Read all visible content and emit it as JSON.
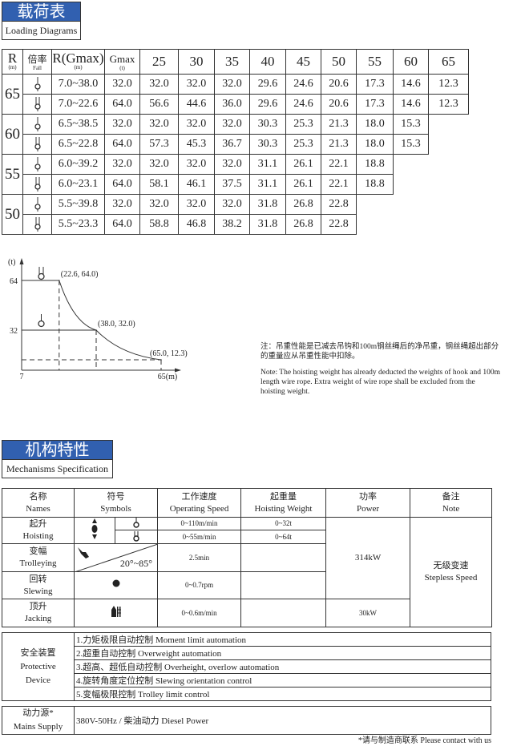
{
  "loading": {
    "title_cn": "载荷表",
    "title_en": "Loading Diagrams",
    "headers": {
      "r": "R",
      "r_unit": "(m)",
      "fall_cn": "倍率",
      "fall_en": "Fall",
      "rgmax": "R(Gmax)",
      "rgmax_unit": "(m)",
      "gmax": "Gmax",
      "gmax_unit": "(t)"
    },
    "radii": [
      "25",
      "30",
      "35",
      "40",
      "45",
      "50",
      "55",
      "60",
      "65"
    ],
    "groups": [
      {
        "r": "65",
        "rows": [
          {
            "fall": "single-hook",
            "range": "7.0~38.0",
            "gmax": "32.0",
            "values": [
              "32.0",
              "32.0",
              "32.0",
              "29.6",
              "24.6",
              "20.6",
              "17.3",
              "14.6",
              "12.3"
            ]
          },
          {
            "fall": "double-hook",
            "range": "7.0~22.6",
            "gmax": "64.0",
            "values": [
              "56.6",
              "44.6",
              "36.0",
              "29.6",
              "24.6",
              "20.6",
              "17.3",
              "14.6",
              "12.3"
            ]
          }
        ]
      },
      {
        "r": "60",
        "rows": [
          {
            "fall": "single-hook",
            "range": "6.5~38.5",
            "gmax": "32.0",
            "values": [
              "32.0",
              "32.0",
              "32.0",
              "30.3",
              "25.3",
              "21.3",
              "18.0",
              "15.3"
            ]
          },
          {
            "fall": "double-hook",
            "range": "6.5~22.8",
            "gmax": "64.0",
            "values": [
              "57.3",
              "45.3",
              "36.7",
              "30.3",
              "25.3",
              "21.3",
              "18.0",
              "15.3"
            ]
          }
        ]
      },
      {
        "r": "55",
        "rows": [
          {
            "fall": "single-hook",
            "range": "6.0~39.2",
            "gmax": "32.0",
            "values": [
              "32.0",
              "32.0",
              "32.0",
              "31.1",
              "26.1",
              "22.1",
              "18.8"
            ]
          },
          {
            "fall": "double-hook",
            "range": "6.0~23.1",
            "gmax": "64.0",
            "values": [
              "58.1",
              "46.1",
              "37.5",
              "31.1",
              "26.1",
              "22.1",
              "18.8"
            ]
          }
        ]
      },
      {
        "r": "50",
        "rows": [
          {
            "fall": "single-hook",
            "range": "5.5~39.8",
            "gmax": "32.0",
            "values": [
              "32.0",
              "32.0",
              "32.0",
              "31.8",
              "26.8",
              "22.8"
            ]
          },
          {
            "fall": "double-hook",
            "range": "5.5~23.3",
            "gmax": "64.0",
            "values": [
              "58.8",
              "46.8",
              "38.2",
              "31.8",
              "26.8",
              "22.8"
            ]
          }
        ]
      }
    ]
  },
  "chart_data": {
    "type": "line",
    "ylabel": "(t)",
    "xlabel": "(m)",
    "x_ticks": [
      "7",
      "65(m)"
    ],
    "y_ticks": [
      "64",
      "32"
    ],
    "points": [
      {
        "x": 22.6,
        "y": 64.0,
        "label": "(22.6, 64.0)"
      },
      {
        "x": 38.0,
        "y": 32.0,
        "label": "(38.0, 32.0)"
      },
      {
        "x": 65.0,
        "y": 12.3,
        "label": "(65.0, 12.3)"
      }
    ],
    "xlim": [
      7,
      65
    ]
  },
  "note": {
    "cn": "注：吊重性能是已减去吊钩和100m钢丝绳后的净吊重，钢丝绳超出部分的重量应从吊重性能中扣除。",
    "en": "Note: The hoisting weight has already deducted the weights of hook and 100m length wire rope. Extra weight of wire rope shall be excluded from the hoisting weight."
  },
  "mechanisms": {
    "title_cn": "机构特性",
    "title_en": "Mechanisms Specification",
    "headers": [
      {
        "cn": "名称",
        "en": "Names"
      },
      {
        "cn": "符号",
        "en": "Symbols"
      },
      {
        "cn": "工作速度",
        "en": "Operating Speed"
      },
      {
        "cn": "起重量",
        "en": "Hoisting Weight"
      },
      {
        "cn": "功率",
        "en": "Power"
      },
      {
        "cn": "备注",
        "en": "Note"
      }
    ],
    "hoisting": {
      "cn": "起升",
      "en": "Hoisting",
      "speed1": "0~110m/min",
      "weight1": "0~32t",
      "speed2": "0~55m/min",
      "weight2": "0~64t"
    },
    "trolleying": {
      "cn": "变幅",
      "en": "Trolleying",
      "angle": "20°~85°",
      "speed": "2.5min"
    },
    "slewing": {
      "cn": "回转",
      "en": "Slewing",
      "speed": "0~0.7rpm"
    },
    "jacking": {
      "cn": "顶升",
      "en": "Jacking",
      "speed": "0~0.6m/min",
      "power": "30kW"
    },
    "power_main": "314kW",
    "note_cn": "无级变速",
    "note_en": "Stepless Speed"
  },
  "protective": {
    "cn": "安全装置",
    "en1": "Protective",
    "en2": "Device",
    "items": [
      "1.力矩极限自动控制  Moment limit automation",
      "2.超重自动控制  Overweight automation",
      "3.超高、超低自动控制  Overheight, overlow automation",
      "4.旋转角度定位控制  Slewing orientation control",
      "5.变幅极限控制  Trolley limit control"
    ]
  },
  "mains": {
    "cn": "动力源*",
    "en": "Mains Supply",
    "value": "380V-50Hz / 柴油动力  Diesel Power"
  },
  "footnote": "*请与制造商联系  Please contact with us",
  "colors": {
    "header_blue": "#3160b0"
  }
}
